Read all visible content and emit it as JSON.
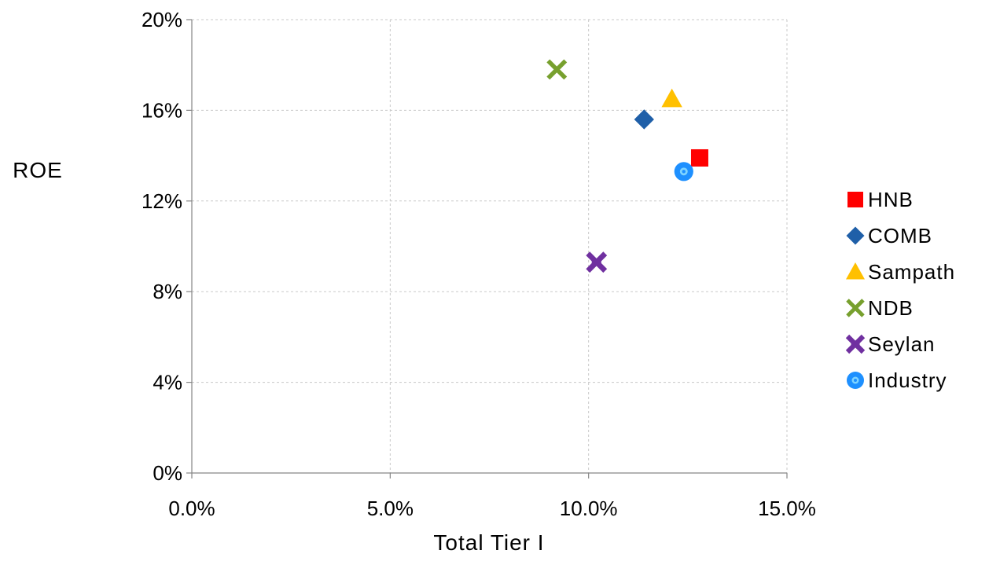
{
  "chart_data": {
    "type": "scatter",
    "xlabel": "Total Tier I",
    "ylabel": "ROE",
    "xlim": [
      0,
      15
    ],
    "ylim": [
      0,
      20
    ],
    "x_ticks": [
      0,
      5,
      10,
      15
    ],
    "x_tick_labels": [
      "0.0%",
      "5.0%",
      "10.0%",
      "15.0%"
    ],
    "y_ticks": [
      0,
      4,
      8,
      12,
      16,
      20
    ],
    "y_tick_labels": [
      "0%",
      "4%",
      "8%",
      "12%",
      "16%",
      "20%"
    ],
    "grid": true,
    "legend_position": "right",
    "series": [
      {
        "name": "HNB",
        "marker": "square",
        "color": "#FF0000",
        "x": [
          12.8
        ],
        "y": [
          13.9
        ]
      },
      {
        "name": "COMB",
        "marker": "diamond",
        "color": "#1F5FA8",
        "x": [
          11.4
        ],
        "y": [
          15.6
        ]
      },
      {
        "name": "Sampath",
        "marker": "triangle",
        "color": "#FFC000",
        "x": [
          12.1
        ],
        "y": [
          16.5
        ]
      },
      {
        "name": "NDB",
        "marker": "x",
        "color": "#77A02E",
        "x": [
          9.2
        ],
        "y": [
          17.8
        ]
      },
      {
        "name": "Seylan",
        "marker": "star",
        "color": "#7030A0",
        "x": [
          10.2
        ],
        "y": [
          9.3
        ]
      },
      {
        "name": "Industry",
        "marker": "circle",
        "color": "#1E90FF",
        "x": [
          12.4
        ],
        "y": [
          13.3
        ]
      }
    ]
  }
}
